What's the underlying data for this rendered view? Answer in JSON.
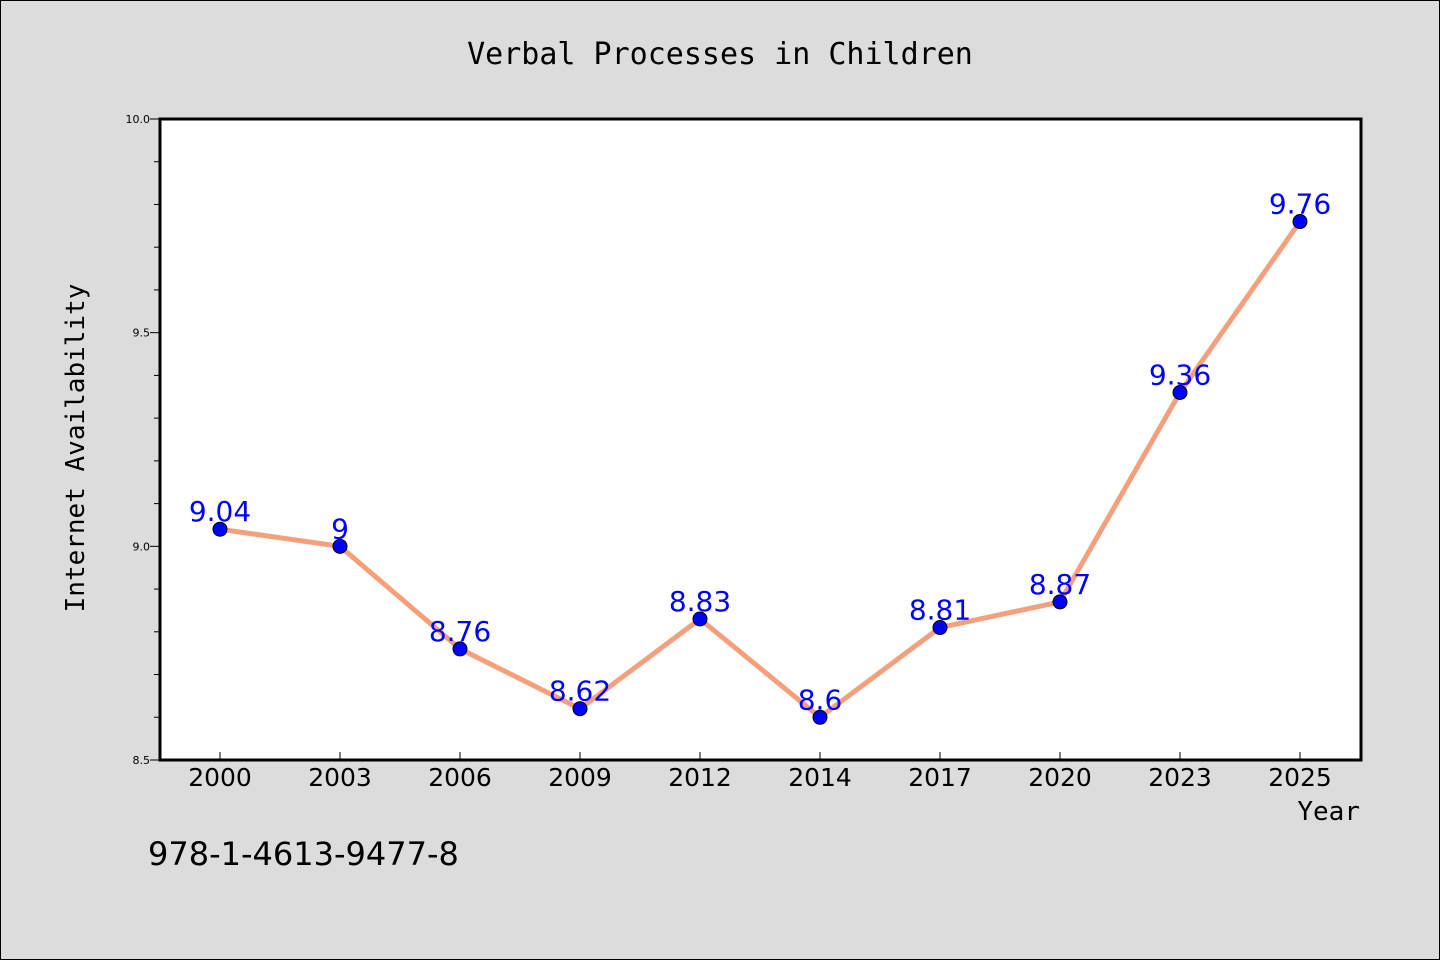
{
  "chart_data": {
    "type": "line",
    "title": "Verbal Processes in Children",
    "xlabel": "Year",
    "ylabel": "Internet Availability",
    "categories": [
      "2000",
      "2003",
      "2006",
      "2009",
      "2012",
      "2014",
      "2017",
      "2020",
      "2023",
      "2025"
    ],
    "series": [
      {
        "values": [
          9.04,
          9,
          8.76,
          8.62,
          8.83,
          8.6,
          8.81,
          8.87,
          9.36,
          9.76
        ],
        "data_labels": [
          "9.04",
          "9",
          "8.76",
          "8.62",
          "8.83",
          "8.6",
          "8.81",
          "8.87",
          "9.36",
          "9.76"
        ],
        "line_color": "#f4a07c",
        "marker_color": "#0000ff"
      }
    ],
    "ylim": [
      8.5,
      10.0
    ],
    "yticks": [
      "8.5",
      "9.0",
      "9.5",
      "10.0"
    ],
    "grid": false,
    "legend": "none"
  },
  "footer_text": "978-1-4613-9477-8",
  "colors": {
    "background": "#dcdcdc",
    "plot_background": "#ffffff",
    "line": "#f4a07c",
    "marker": "#0000ff",
    "data_label": "#0000ff"
  }
}
